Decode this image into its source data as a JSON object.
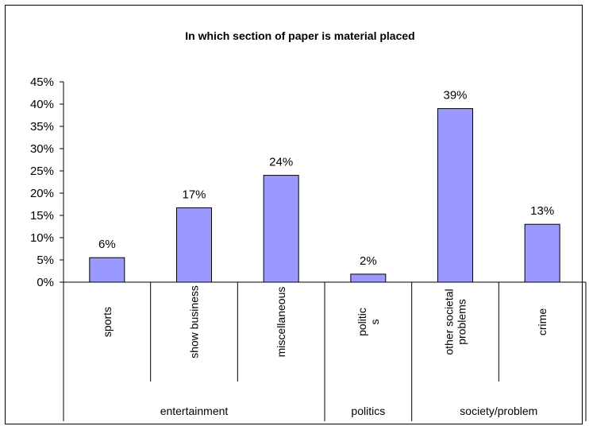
{
  "chart_data": {
    "type": "bar",
    "title": "In which section of paper is material placed",
    "xlabel": "",
    "ylabel": "",
    "ylim": [
      0,
      45
    ],
    "yticks": [
      "0%",
      "5%",
      "10%",
      "15%",
      "20%",
      "25%",
      "30%",
      "35%",
      "40%",
      "45%"
    ],
    "categories": [
      [
        "sports"
      ],
      [
        "show business"
      ],
      [
        "miscellaneous"
      ],
      [
        "politic",
        "s"
      ],
      [
        "other societal",
        "problems"
      ],
      [
        "crime"
      ]
    ],
    "values": [
      5.5,
      16.7,
      24,
      1.8,
      39,
      13
    ],
    "data_labels": [
      "6%",
      "17%",
      "24%",
      "2%",
      "39%",
      "13%"
    ],
    "groups": [
      {
        "label": "entertainment",
        "span": 3
      },
      {
        "label": "politics",
        "span": 1
      },
      {
        "label": "society/problem",
        "span": 2
      }
    ],
    "bar_color": "#9999ff",
    "grid": false,
    "legend": "none"
  }
}
